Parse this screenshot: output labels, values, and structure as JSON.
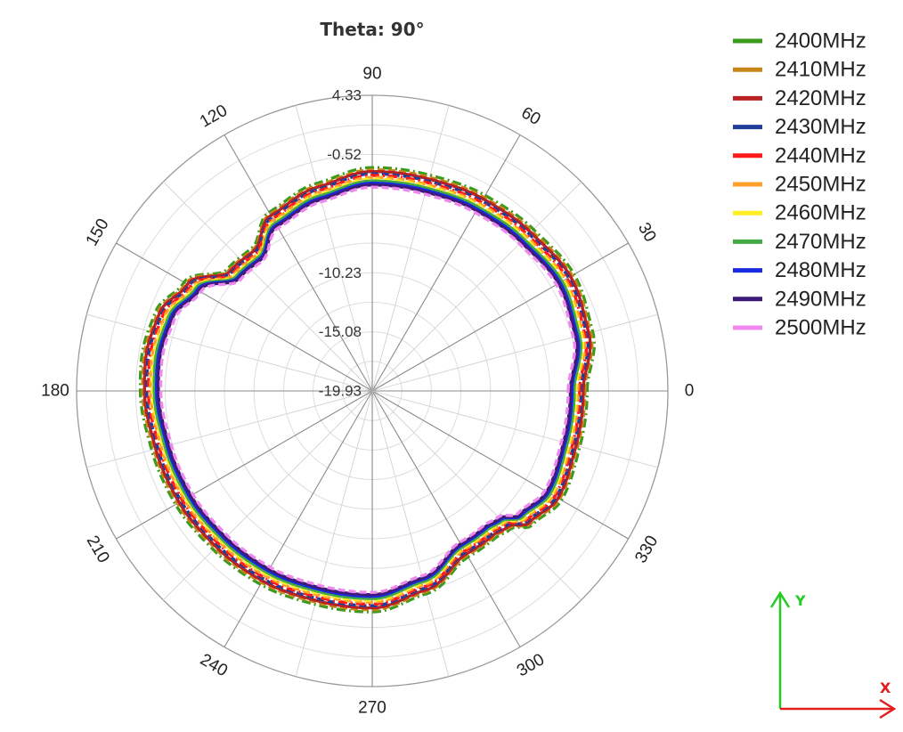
{
  "chart_data": {
    "type": "polar-line",
    "title": "Theta: 90°",
    "angle_ticks": [
      0,
      30,
      60,
      90,
      120,
      150,
      180,
      210,
      240,
      270,
      300,
      330
    ],
    "angle_tick_step_deg": 15,
    "radial_ticks": [
      "4.33",
      "-0.52",
      "-10.23",
      "-15.08",
      "-19.93"
    ],
    "rlim": [
      -19.93,
      4.33
    ],
    "r_step": 2.426,
    "grid": true,
    "legend_position": "right",
    "series": [
      {
        "name": "2400MHz",
        "color": "#3a9a1c",
        "dash": "dashdot",
        "scale": 1.0
      },
      {
        "name": "2410MHz",
        "color": "#c8861a",
        "dash": "dash",
        "scale": 0.99
      },
      {
        "name": "2420MHz",
        "color": "#b82222",
        "dash": "solid",
        "scale": 0.982
      },
      {
        "name": "2430MHz",
        "color": "#1f3e9a",
        "dash": "dash",
        "scale": 0.972
      },
      {
        "name": "2440MHz",
        "color": "#ff1a1a",
        "dash": "dashdot",
        "scale": 0.965
      },
      {
        "name": "2450MHz",
        "color": "#ff9f2a",
        "dash": "dash",
        "scale": 0.956
      },
      {
        "name": "2460MHz",
        "color": "#ffee22",
        "dash": "dash",
        "scale": 0.948
      },
      {
        "name": "2470MHz",
        "color": "#44aa44",
        "dash": "solid",
        "scale": 0.94
      },
      {
        "name": "2480MHz",
        "color": "#1a2ae0",
        "dash": "solid",
        "scale": 0.93
      },
      {
        "name": "2490MHz",
        "color": "#3d1a78",
        "dash": "solid",
        "scale": 0.922
      },
      {
        "name": "2500MHz",
        "color": "#ee88ee",
        "dash": "dash",
        "scale": 0.912
      }
    ],
    "pattern": {
      "angles": [
        0,
        15,
        30,
        45,
        60,
        75,
        90,
        105,
        120,
        130,
        140,
        150,
        160,
        170,
        180,
        195,
        210,
        225,
        240,
        255,
        270,
        285,
        300,
        310,
        315,
        320,
        330,
        345
      ],
      "r_values": [
        -2.3,
        -1.2,
        -0.8,
        -1.2,
        -1.4,
        -1.6,
        -1.6,
        -2.3,
        -3.0,
        -4.6,
        -4.4,
        -2.1,
        -1.0,
        -0.8,
        -0.9,
        -1.2,
        -1.3,
        -1.5,
        -1.6,
        -1.8,
        -1.8,
        -2.7,
        -4.2,
        -4.2,
        -3.9,
        -2.8,
        -2.0,
        -2.3
      ]
    }
  },
  "axis_indicator": {
    "x_label": "X",
    "y_label": "Y",
    "x_color": "#e11d1d",
    "y_color": "#22cc22"
  }
}
